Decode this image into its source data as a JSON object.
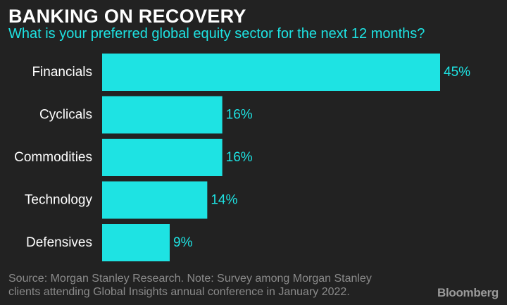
{
  "chart_data": {
    "type": "bar",
    "orientation": "horizontal",
    "title": "BANKING ON RECOVERY",
    "subtitle": "What is your preferred global equity sector for the next 12 months?",
    "categories": [
      "Financials",
      "Cyclicals",
      "Commodities",
      "Technology",
      "Defensives"
    ],
    "values": [
      45,
      16,
      16,
      14,
      9
    ],
    "value_labels": [
      "45%",
      "16%",
      "16%",
      "14%",
      "9%"
    ],
    "unit": "%",
    "xlim": [
      0,
      45
    ],
    "grid": false,
    "legend": "none",
    "bar_color": "#1ee3e3",
    "label_color": "#1ee3e3",
    "source_lines": [
      "Source: Morgan Stanley Research. Note: Survey among Morgan Stanley",
      "clients attending Global Insights annual conference in January 2022."
    ]
  },
  "brand": "Bloomberg",
  "colors": {
    "background": "#222222",
    "title": "#ffffff",
    "accent": "#1ee3e3",
    "category_text": "#ffffff",
    "source_text": "#8a8a8a"
  }
}
